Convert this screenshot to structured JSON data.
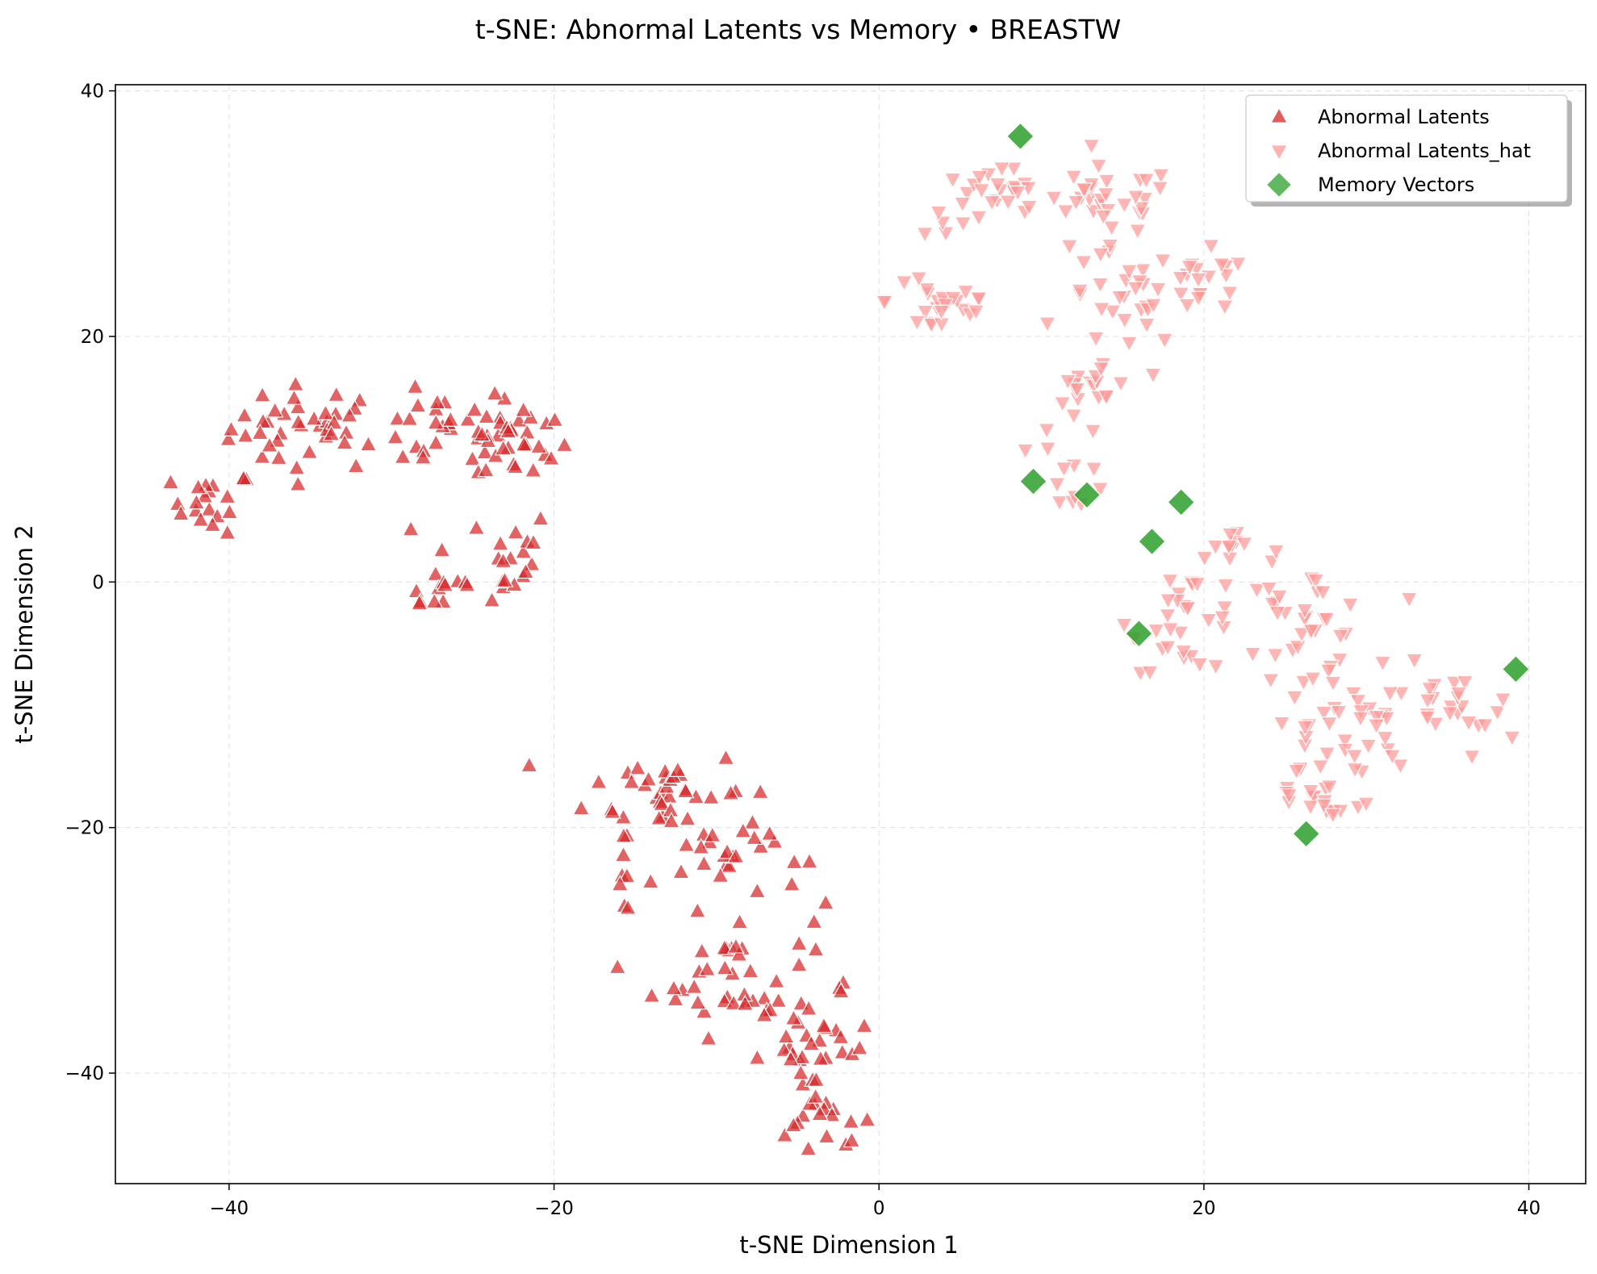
{
  "chart_data": {
    "type": "scatter",
    "title": "t-SNE: Abnormal Latents vs Memory • BREASTW",
    "xlabel": "t-SNE Dimension 1",
    "ylabel": "t-SNE Dimension 2",
    "xlim": [
      -47,
      43.5
    ],
    "ylim": [
      -49,
      40.5
    ],
    "xticks": [
      -40,
      -20,
      0,
      20,
      40
    ],
    "yticks": [
      -40,
      -20,
      0,
      20,
      40
    ],
    "xtick_labels": [
      "−40",
      "−20",
      "0",
      "20",
      "40"
    ],
    "ytick_labels": [
      "−40",
      "−20",
      "0",
      "20",
      "40"
    ],
    "grid": true,
    "legend_position": "top-right",
    "series": [
      {
        "name": "Abnormal Latents",
        "marker": "triangle-up",
        "color": "#d62728",
        "clusters": [
          {
            "center": [
              -35,
              12.5
            ],
            "spread": [
              3.5,
              2.5
            ],
            "count": 40
          },
          {
            "center": [
              -41,
              6.5
            ],
            "spread": [
              1.8,
              1.8
            ],
            "count": 20
          },
          {
            "center": [
              -27,
              12
            ],
            "spread": [
              3.5,
              2.2
            ],
            "count": 30
          },
          {
            "center": [
              -22,
              11.5
            ],
            "spread": [
              2,
              2.5
            ],
            "count": 28
          },
          {
            "center": [
              -24,
              2
            ],
            "spread": [
              3,
              3
            ],
            "count": 20
          },
          {
            "center": [
              -27,
              -0.5
            ],
            "spread": [
              2,
              1.5
            ],
            "count": 12
          },
          {
            "center": [
              -13,
              -17
            ],
            "spread": [
              3.5,
              2.5
            ],
            "count": 35
          },
          {
            "center": [
              -9,
              -22
            ],
            "spread": [
              3,
              3
            ],
            "count": 28
          },
          {
            "center": [
              -9,
              -32
            ],
            "spread": [
              3.5,
              3.5
            ],
            "count": 40
          },
          {
            "center": [
              -4,
              -38
            ],
            "spread": [
              2.5,
              3
            ],
            "count": 35
          },
          {
            "center": [
              -3,
              -44
            ],
            "spread": [
              2,
              1.5
            ],
            "count": 15
          },
          {
            "center": [
              -16,
              -24
            ],
            "spread": [
              1.5,
              2
            ],
            "count": 8
          }
        ]
      },
      {
        "name": "Abnormal Latents_hat",
        "marker": "triangle-down",
        "color": "#ff9896",
        "clusters": [
          {
            "center": [
              7,
              31
            ],
            "spread": [
              3,
              2
            ],
            "count": 30
          },
          {
            "center": [
              4,
              23
            ],
            "spread": [
              2.5,
              2.5
            ],
            "count": 25
          },
          {
            "center": [
              14,
              31
            ],
            "spread": [
              3,
              2
            ],
            "count": 30
          },
          {
            "center": [
              15,
              23
            ],
            "spread": [
              2.5,
              3
            ],
            "count": 28
          },
          {
            "center": [
              20,
              24
            ],
            "spread": [
              2,
              2
            ],
            "count": 20
          },
          {
            "center": [
              13.5,
              16
            ],
            "spread": [
              2,
              2
            ],
            "count": 20
          },
          {
            "center": [
              12,
              9
            ],
            "spread": [
              1.5,
              2.5
            ],
            "count": 12
          },
          {
            "center": [
              19,
              -3
            ],
            "spread": [
              2.5,
              3
            ],
            "count": 30
          },
          {
            "center": [
              26,
              -3
            ],
            "spread": [
              3,
              3
            ],
            "count": 35
          },
          {
            "center": [
              28,
              -12
            ],
            "spread": [
              3.5,
              4
            ],
            "count": 40
          },
          {
            "center": [
              35,
              -11
            ],
            "spread": [
              3,
              2.5
            ],
            "count": 25
          },
          {
            "center": [
              22,
              3
            ],
            "spread": [
              2,
              1.5
            ],
            "count": 10
          },
          {
            "center": [
              27,
              -18
            ],
            "spread": [
              2.5,
              1.5
            ],
            "count": 15
          }
        ]
      },
      {
        "name": "Memory Vectors",
        "marker": "diamond",
        "color": "#2ca02c",
        "points": [
          {
            "x": 8.7,
            "y": 36.3
          },
          {
            "x": 9.5,
            "y": 8.2
          },
          {
            "x": 12.8,
            "y": 7.1
          },
          {
            "x": 18.6,
            "y": 6.5
          },
          {
            "x": 16.8,
            "y": 3.3
          },
          {
            "x": 16.0,
            "y": -4.2
          },
          {
            "x": 39.2,
            "y": -7.1
          },
          {
            "x": 26.3,
            "y": -20.5
          }
        ]
      }
    ]
  }
}
